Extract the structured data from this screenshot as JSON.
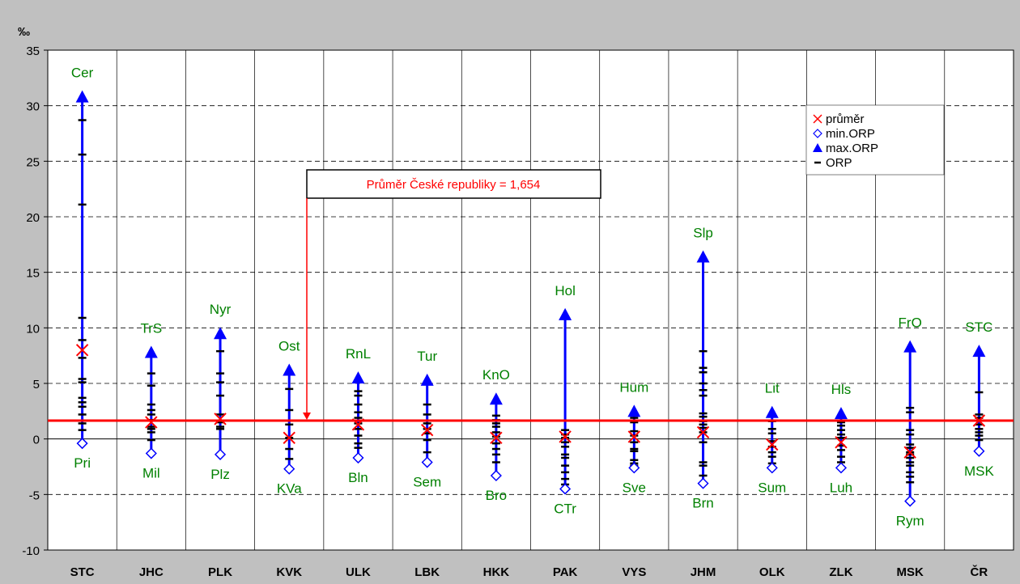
{
  "chart_data": {
    "type": "scatter",
    "y_unit_label": "‰",
    "ylim": [
      -10,
      35
    ],
    "yticks": [
      35,
      30,
      25,
      20,
      15,
      10,
      5,
      0,
      -5,
      -10
    ],
    "grid": true,
    "legend_placement": "top-right",
    "legend": [
      "průměr",
      "min.ORP",
      "max.ORP",
      "ORP"
    ],
    "reference_line": {
      "label": "Průměr České republiky = 1,654",
      "value": 1.654
    },
    "categories": [
      "STC",
      "JHC",
      "PLK",
      "KVK",
      "ULK",
      "LBK",
      "HKK",
      "PAK",
      "VYS",
      "JHM",
      "OLK",
      "ZLK",
      "MSK",
      "ČR"
    ],
    "series": [
      {
        "name": "průměr",
        "values": [
          8.0,
          1.5,
          1.8,
          0.1,
          1.3,
          0.8,
          0.1,
          0.2,
          0.2,
          0.6,
          -0.5,
          -0.3,
          -1.2,
          1.65
        ]
      },
      {
        "name": "min.ORP",
        "values": [
          -0.4,
          -1.3,
          -1.4,
          -2.7,
          -1.7,
          -2.1,
          -3.3,
          -4.5,
          -2.6,
          -4.0,
          -2.6,
          -2.6,
          -5.6,
          -1.1
        ]
      },
      {
        "name": "max.ORP",
        "values": [
          30.8,
          7.8,
          9.5,
          6.2,
          5.5,
          5.3,
          3.6,
          11.2,
          2.5,
          16.4,
          2.4,
          2.3,
          8.3,
          7.9
        ]
      },
      {
        "name": "ORP",
        "values": [
          [
            28.7,
            25.6,
            21.1,
            10.9,
            8.9,
            7.3,
            5.4,
            5.1,
            3.7,
            3.3,
            2.9,
            2.2,
            1.4,
            0.8
          ],
          [
            5.9,
            4.8,
            3.1,
            2.6,
            2.2,
            1.7,
            1.1,
            0.9,
            0.6,
            -0.1
          ],
          [
            7.9,
            5.9,
            5.1,
            3.9,
            2.2,
            1.5,
            1.1,
            0.9
          ],
          [
            4.5,
            2.6,
            1.3,
            0.1,
            -0.9,
            -1.8
          ],
          [
            4.3,
            3.9,
            3.1,
            2.4,
            1.9,
            1.4,
            0.9,
            0.3,
            -0.4,
            -0.8
          ],
          [
            3.1,
            2.2,
            1.4,
            0.9,
            0.5,
            -0.1,
            -1.2
          ],
          [
            2.1,
            1.7,
            1.4,
            1.1,
            0.6,
            0.2,
            -0.4,
            -0.9,
            -1.4,
            -2.1
          ],
          [
            0.8,
            0.4,
            0.1,
            -0.3,
            -0.7,
            -1.4,
            -1.7,
            -2.4,
            -3.0,
            -3.6,
            -4.1
          ],
          [
            1.9,
            1.5,
            0.7,
            0.3,
            -0.3,
            -0.9,
            -1.1,
            -1.9,
            -2.2,
            -2.4
          ],
          [
            7.9,
            6.4,
            6.0,
            5.0,
            4.4,
            3.9,
            2.3,
            2.0,
            1.6,
            1.3,
            1.0,
            0.6,
            -0.3,
            -2.1,
            -2.4,
            -3.3
          ],
          [
            2.0,
            1.6,
            0.9,
            0.5,
            -0.2,
            -0.7,
            -1.2,
            -1.6,
            -2.2
          ],
          [
            2.0,
            1.5,
            1.2,
            0.8,
            0.4,
            0.1,
            -0.6,
            -1.0,
            -1.6,
            -2.1
          ],
          [
            2.8,
            2.4,
            0.8,
            0.4,
            -0.5,
            -0.8,
            -1.2,
            -1.4,
            -1.7,
            -2.1,
            -2.4,
            -3.0,
            -3.4,
            -3.9
          ],
          [
            4.2,
            2.2,
            1.9,
            1.3,
            0.9,
            0.6,
            0.3,
            -0.1
          ]
        ]
      }
    ],
    "max_labels": [
      "Cer",
      "TrS",
      "Nyr",
      "Ost",
      "RnL",
      "Tur",
      "KnO",
      "Hol",
      "Hum",
      "Slp",
      "Lit",
      "Hls",
      "FrO",
      "STC"
    ],
    "min_labels": [
      "Pri",
      "Mil",
      "Plz",
      "KVa",
      "Bln",
      "Sem",
      "Bro",
      "CTr",
      "Sve",
      "Brn",
      "Sum",
      "Luh",
      "Rym",
      "MSK"
    ],
    "colors": {
      "plot_bg": "#ffffff",
      "frame_bg": "#c0c0c0",
      "bar": "#0000ff",
      "avg": "#ff0000",
      "ref": "#ff0000",
      "label": "#008000",
      "orp": "#000000"
    }
  }
}
